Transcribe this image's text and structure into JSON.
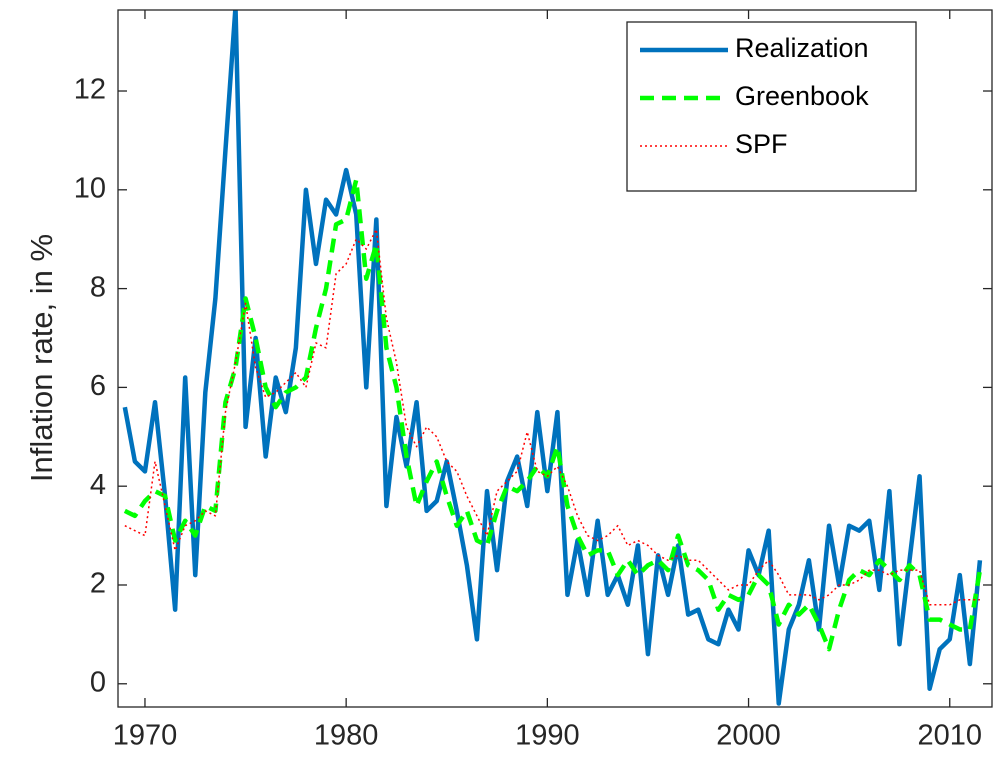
{
  "chart_data": {
    "type": "line",
    "y_label": "Inflation rate, in %",
    "x": [
      1969,
      1969.5,
      1970,
      1970.5,
      1971,
      1971.5,
      1972,
      1972.5,
      1973,
      1973.5,
      1974,
      1974.5,
      1975,
      1975.5,
      1976,
      1976.5,
      1977,
      1977.5,
      1978,
      1978.5,
      1979,
      1979.5,
      1980,
      1980.5,
      1981,
      1981.5,
      1982,
      1982.5,
      1983,
      1983.5,
      1984,
      1984.5,
      1985,
      1985.5,
      1986,
      1986.5,
      1987,
      1987.5,
      1988,
      1988.5,
      1989,
      1989.5,
      1990,
      1990.5,
      1991,
      1991.5,
      1992,
      1992.5,
      1993,
      1993.5,
      1994,
      1994.5,
      1995,
      1995.5,
      1996,
      1996.5,
      1997,
      1997.5,
      1998,
      1998.5,
      1999,
      1999.5,
      2000,
      2000.5,
      2001,
      2001.5,
      2002,
      2002.5,
      2003,
      2003.5,
      2004,
      2004.5,
      2005,
      2005.5,
      2006,
      2006.5,
      2007,
      2007.5,
      2008,
      2008.5,
      2009,
      2009.5,
      2010,
      2010.5,
      2011,
      2011.5
    ],
    "series": [
      {
        "name": "Realization",
        "color": "#0072bd",
        "line_style": "solid",
        "values": [
          5.6,
          4.5,
          4.3,
          5.7,
          3.8,
          1.5,
          6.2,
          2.2,
          5.9,
          7.8,
          10.8,
          13.7,
          5.2,
          7.0,
          4.6,
          6.2,
          5.5,
          6.8,
          10.0,
          8.5,
          9.8,
          9.5,
          10.4,
          9.5,
          6.0,
          9.4,
          3.6,
          5.4,
          4.4,
          5.7,
          3.5,
          3.7,
          4.5,
          3.5,
          2.4,
          0.9,
          3.9,
          2.3,
          4.1,
          4.6,
          3.6,
          5.5,
          3.9,
          5.5,
          1.8,
          2.9,
          1.8,
          3.3,
          1.8,
          2.2,
          1.6,
          2.8,
          0.6,
          2.6,
          1.8,
          2.8,
          1.4,
          1.5,
          0.9,
          0.8,
          1.5,
          1.1,
          2.7,
          2.2,
          3.1,
          -0.4,
          1.1,
          1.6,
          2.5,
          1.1,
          3.2,
          2.0,
          3.2,
          3.1,
          3.3,
          1.9,
          3.9,
          0.8,
          2.5,
          4.2,
          -0.1,
          0.7,
          0.9,
          2.2,
          0.4,
          2.5
        ]
      },
      {
        "name": "Greenbook",
        "color": "#00ff00",
        "line_style": "dashed",
        "values": [
          3.5,
          3.4,
          3.7,
          3.9,
          3.8,
          2.9,
          3.3,
          3.0,
          3.6,
          3.5,
          5.7,
          6.4,
          7.8,
          7.0,
          6.0,
          5.6,
          5.9,
          6.0,
          6.2,
          7.2,
          8.0,
          9.3,
          9.4,
          10.2,
          8.2,
          8.9,
          6.8,
          6.0,
          4.6,
          3.6,
          4.1,
          4.5,
          3.8,
          3.2,
          3.5,
          2.9,
          2.8,
          3.5,
          4.0,
          3.9,
          4.1,
          4.4,
          4.2,
          4.8,
          3.6,
          3.0,
          2.6,
          2.7,
          2.7,
          2.2,
          2.5,
          2.2,
          2.4,
          2.5,
          2.3,
          3.0,
          2.4,
          2.3,
          2.1,
          1.5,
          1.8,
          1.7,
          1.8,
          2.2,
          2.0,
          1.2,
          1.6,
          1.4,
          1.6,
          1.2,
          0.7,
          1.5,
          2.1,
          2.3,
          2.2,
          2.5,
          2.3,
          2.1,
          2.4,
          2.2,
          1.3,
          1.3,
          1.2,
          1.1,
          1.1,
          2.3
        ]
      },
      {
        "name": "SPF",
        "color": "#ff0000",
        "line_style": "dotted",
        "values": [
          3.2,
          3.1,
          3.0,
          4.5,
          3.6,
          2.7,
          3.2,
          3.3,
          3.5,
          3.4,
          5.5,
          6.5,
          7.7,
          6.4,
          5.8,
          5.9,
          6.1,
          6.3,
          6.0,
          6.9,
          6.8,
          8.3,
          8.5,
          9.0,
          8.8,
          9.2,
          7.4,
          6.5,
          5.2,
          4.8,
          5.2,
          5.0,
          4.5,
          4.3,
          3.8,
          3.4,
          3.0,
          3.9,
          4.1,
          4.3,
          5.1,
          4.3,
          4.2,
          4.4,
          4.0,
          3.4,
          3.0,
          2.9,
          3.0,
          3.2,
          2.8,
          2.9,
          2.8,
          2.6,
          2.5,
          2.6,
          2.5,
          2.5,
          2.3,
          2.1,
          1.9,
          2.0,
          2.0,
          2.3,
          2.5,
          2.2,
          1.8,
          1.8,
          1.8,
          1.7,
          1.8,
          2.0,
          2.0,
          2.1,
          2.3,
          2.3,
          2.2,
          2.3,
          2.3,
          2.3,
          1.6,
          1.6,
          1.6,
          1.7,
          1.7,
          1.7
        ]
      }
    ],
    "xlim": [
      1968.66,
      2012.1
    ],
    "ylim": [
      -0.47,
      13.64
    ],
    "xticks": [
      1970,
      1980,
      1990,
      2000,
      2010
    ],
    "yticks": [
      0,
      2,
      4,
      6,
      8,
      10,
      12
    ],
    "legend": "northeast"
  }
}
